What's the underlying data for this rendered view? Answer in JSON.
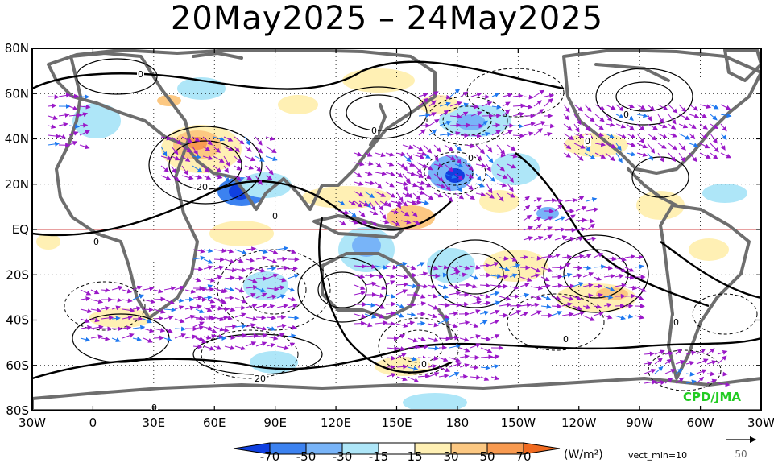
{
  "title": "20May2025 – 24May2025",
  "latitude_labels": [
    "80N",
    "60N",
    "40N",
    "20N",
    "EQ",
    "20S",
    "40S",
    "60S",
    "80S"
  ],
  "longitude_labels": [
    "30W",
    "0",
    "30E",
    "60E",
    "90E",
    "120E",
    "150E",
    "180",
    "150W",
    "120W",
    "90W",
    "60W",
    "30W"
  ],
  "credit": "CPD/JMA",
  "colorbar": {
    "ticks": [
      "-70",
      "-50",
      "-30",
      "-15",
      "15",
      "30",
      "50",
      "70"
    ],
    "colors": [
      "#1040e0",
      "#3c82f0",
      "#78b4f8",
      "#aee6f8",
      "#ffffff",
      "#fff0b4",
      "#fcc882",
      "#f89a50",
      "#f06a20"
    ],
    "units": "(W/m²)",
    "vector_note": "vect_min=10"
  },
  "reference_vector": {
    "value": "50"
  },
  "contour_labels": [
    "0",
    "0",
    "0",
    "0",
    "0",
    "0",
    "0",
    "0",
    "0",
    "0",
    "0",
    "20",
    "20"
  ],
  "colors": {
    "vector": "#9a18c8",
    "vector_strong": "#1e78f0",
    "coast": "#6e6e6e",
    "equator": "#d04040",
    "credit": "#22cc22"
  }
}
